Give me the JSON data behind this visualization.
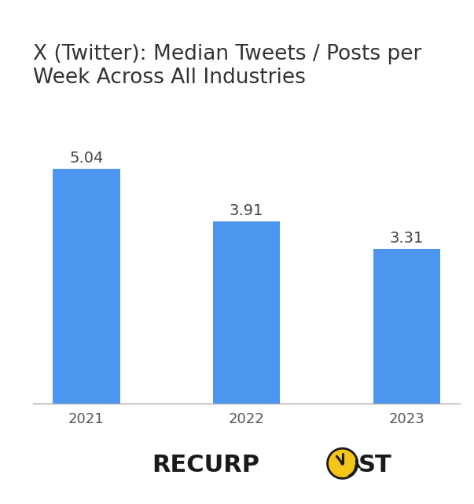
{
  "categories": [
    "2021",
    "2022",
    "2023"
  ],
  "values": [
    5.04,
    3.91,
    3.31
  ],
  "bar_color": "#4d96f0",
  "title_line1": "X (Twitter): Median Tweets / Posts per",
  "title_line2": "Week Across All Industries",
  "title_fontsize": 19,
  "label_fontsize": 14,
  "tick_fontsize": 13,
  "background_color": "#ffffff",
  "bar_width": 0.42,
  "ylim": [
    0,
    6.5
  ],
  "value_label_color": "#444444",
  "logo_text_before": "RECURP",
  "logo_text_after": "ST",
  "logo_fontsize": 22,
  "logo_color": "#1a1a1a",
  "clock_color": "#f5c518",
  "clock_border_color": "#1a1a1a"
}
